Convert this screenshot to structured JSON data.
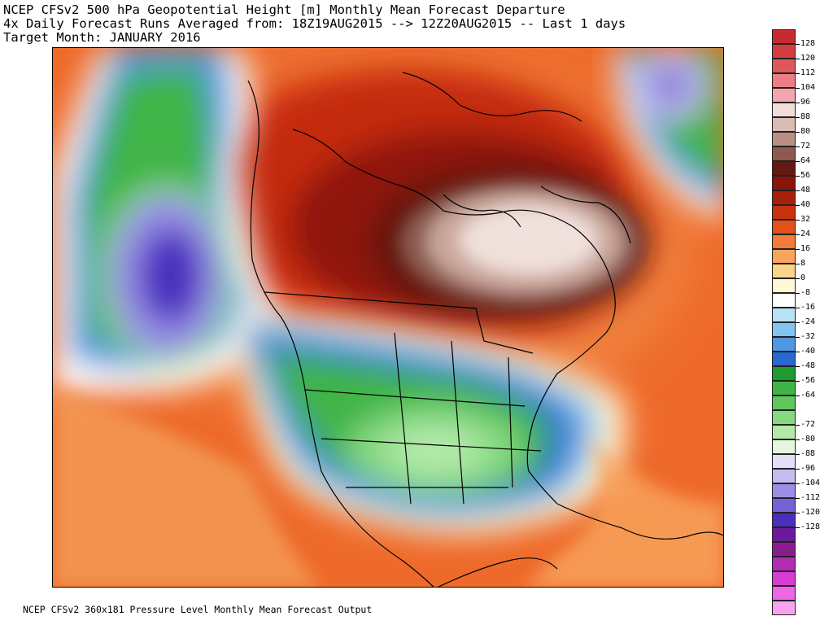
{
  "title": {
    "line1": "NCEP CFSv2 500 hPa Geopotential Height [m] Monthly Mean Forecast Departure",
    "line2": "4x Daily Forecast Runs Averaged from: 18Z19AUG2015 --> 12Z20AUG2015 -- Last 1 days",
    "line3": "Target Month: JANUARY 2016"
  },
  "footer": "NCEP CFSv2 360x181 Pressure Level Monthly Mean Forecast Output",
  "legend": {
    "items": [
      {
        "label": "128",
        "color": "#c62a2f"
      },
      {
        "label": "120",
        "color": "#d43d40"
      },
      {
        "label": "112",
        "color": "#e0575a"
      },
      {
        "label": "104",
        "color": "#ec7e86"
      },
      {
        "label": "96",
        "color": "#f4a6ad"
      },
      {
        "label": "88",
        "color": "#f2ddd8"
      },
      {
        "label": "80",
        "color": "#d9bcb3"
      },
      {
        "label": "72",
        "color": "#bb8f84"
      },
      {
        "label": "64",
        "color": "#8e5a4f"
      },
      {
        "label": "56",
        "color": "#621a13"
      },
      {
        "label": "48",
        "color": "#8a1408"
      },
      {
        "label": "40",
        "color": "#a8200a"
      },
      {
        "label": "32",
        "color": "#c8310c"
      },
      {
        "label": "24",
        "color": "#e4501a"
      },
      {
        "label": "16",
        "color": "#f27b3a"
      },
      {
        "label": "8",
        "color": "#f7a55e"
      },
      {
        "label": "0",
        "color": "#fad48a"
      },
      {
        "label": "-8",
        "color": "#fff8d4"
      },
      {
        "label": "-16",
        "color": "#ffffff"
      },
      {
        "label": "-24",
        "color": "#b7e3f5"
      },
      {
        "label": "-32",
        "color": "#85c4ef"
      },
      {
        "label": "-40",
        "color": "#4f96e4"
      },
      {
        "label": "-48",
        "color": "#2868d2"
      },
      {
        "label": "-56",
        "color": "#1f9a2e"
      },
      {
        "label": "-64",
        "color": "#3fb446"
      },
      {
        "label": "",
        "color": "#5fc75e"
      },
      {
        "label": "-72",
        "color": "#86d981"
      },
      {
        "label": "-80",
        "color": "#b3eaaa"
      },
      {
        "label": "-88",
        "color": "#e6f7df"
      },
      {
        "label": "-96",
        "color": "#e3e0f7"
      },
      {
        "label": "-104",
        "color": "#c3bdf0"
      },
      {
        "label": "-112",
        "color": "#9a8ee6"
      },
      {
        "label": "-120",
        "color": "#7560d6"
      },
      {
        "label": "-128",
        "color": "#4a2fbe"
      },
      {
        "label": "",
        "color": "#6b1a9c"
      },
      {
        "label": "",
        "color": "#8a1d8e"
      },
      {
        "label": "",
        "color": "#b22bb2"
      },
      {
        "label": "",
        "color": "#d63dd3"
      },
      {
        "label": "",
        "color": "#ee66e6"
      },
      {
        "label": "",
        "color": "#f7a3ee"
      }
    ]
  },
  "colors": {
    "positive_high": "#5a1410",
    "positive_mid": "#d8420f",
    "positive_low": "#f39a55",
    "negative_green": "#45b84a",
    "negative_blue": "#2d6fd6",
    "negative_purple": "#4b30bd",
    "coastline": "#000000"
  }
}
